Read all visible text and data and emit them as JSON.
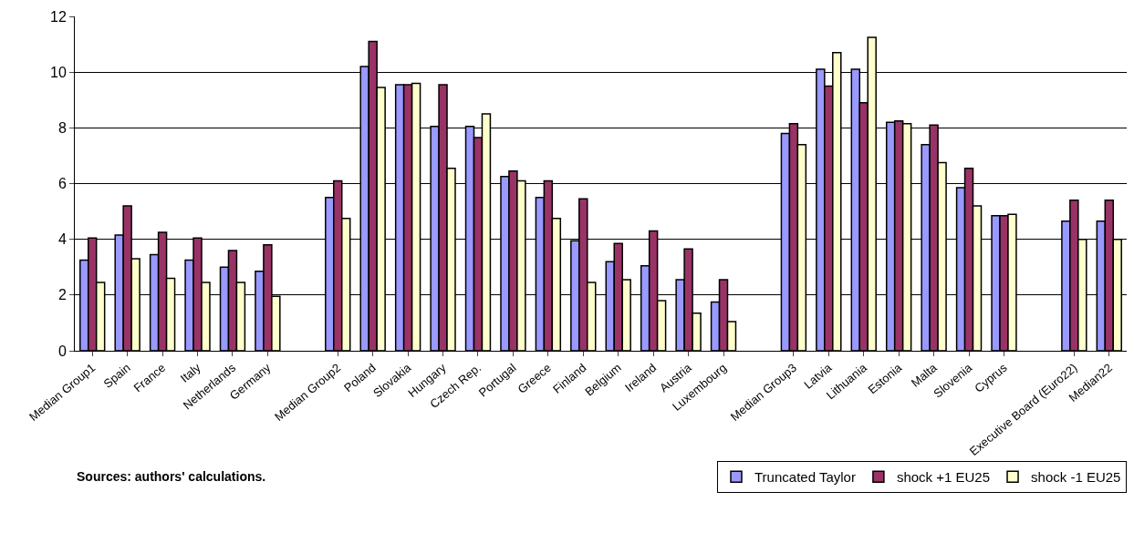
{
  "chart_data": {
    "type": "bar",
    "categories": [
      "Median Group1",
      "Spain",
      "France",
      "Italy",
      "Netherlands",
      "Germany",
      null,
      "Median Group2",
      "Poland",
      "Slovakia",
      "Hungary",
      "Czech Rep.",
      "Portugal",
      "Greece",
      "Finland",
      "Belgium",
      "Ireland",
      "Austria",
      "Luxembourg",
      null,
      "Median Group3",
      "Latvia",
      "Lithuania",
      "Estonia",
      "Malta",
      "Slovenia",
      "Cyprus",
      null,
      "Executive Board (Euro22)",
      "Median22"
    ],
    "series": [
      {
        "name": "Truncated Taylor",
        "color": "#9999ff",
        "values": [
          3.25,
          4.15,
          3.45,
          3.25,
          3.0,
          2.85,
          null,
          5.5,
          10.2,
          9.55,
          8.05,
          8.05,
          6.25,
          5.5,
          3.95,
          3.2,
          3.05,
          2.55,
          1.75,
          null,
          7.8,
          10.1,
          10.1,
          8.2,
          7.4,
          5.85,
          4.85,
          null,
          4.65,
          4.65
        ]
      },
      {
        "name": "shock +1 EU25",
        "color": "#993366",
        "values": [
          4.05,
          5.2,
          4.25,
          4.05,
          3.6,
          3.8,
          null,
          6.1,
          11.1,
          9.55,
          9.55,
          7.65,
          6.45,
          6.1,
          5.45,
          3.85,
          4.3,
          3.65,
          2.55,
          null,
          8.15,
          9.5,
          8.9,
          8.25,
          8.1,
          6.55,
          4.85,
          null,
          5.4,
          5.4
        ]
      },
      {
        "name": "shock -1 EU25",
        "color": "#ffffcc",
        "values": [
          2.45,
          3.3,
          2.6,
          2.45,
          2.45,
          1.95,
          null,
          4.75,
          9.45,
          9.6,
          6.55,
          8.5,
          6.1,
          4.75,
          2.45,
          2.55,
          1.8,
          1.35,
          1.05,
          null,
          7.4,
          10.7,
          11.25,
          8.15,
          6.75,
          5.2,
          4.9,
          null,
          4.0,
          4.0
        ]
      }
    ],
    "ylim": [
      0,
      12
    ],
    "yticks": [
      0,
      2,
      4,
      6,
      8,
      10,
      12
    ],
    "grid": "y",
    "legend": "bottom right",
    "annotations": [
      "Sources: authors' calculations."
    ]
  }
}
